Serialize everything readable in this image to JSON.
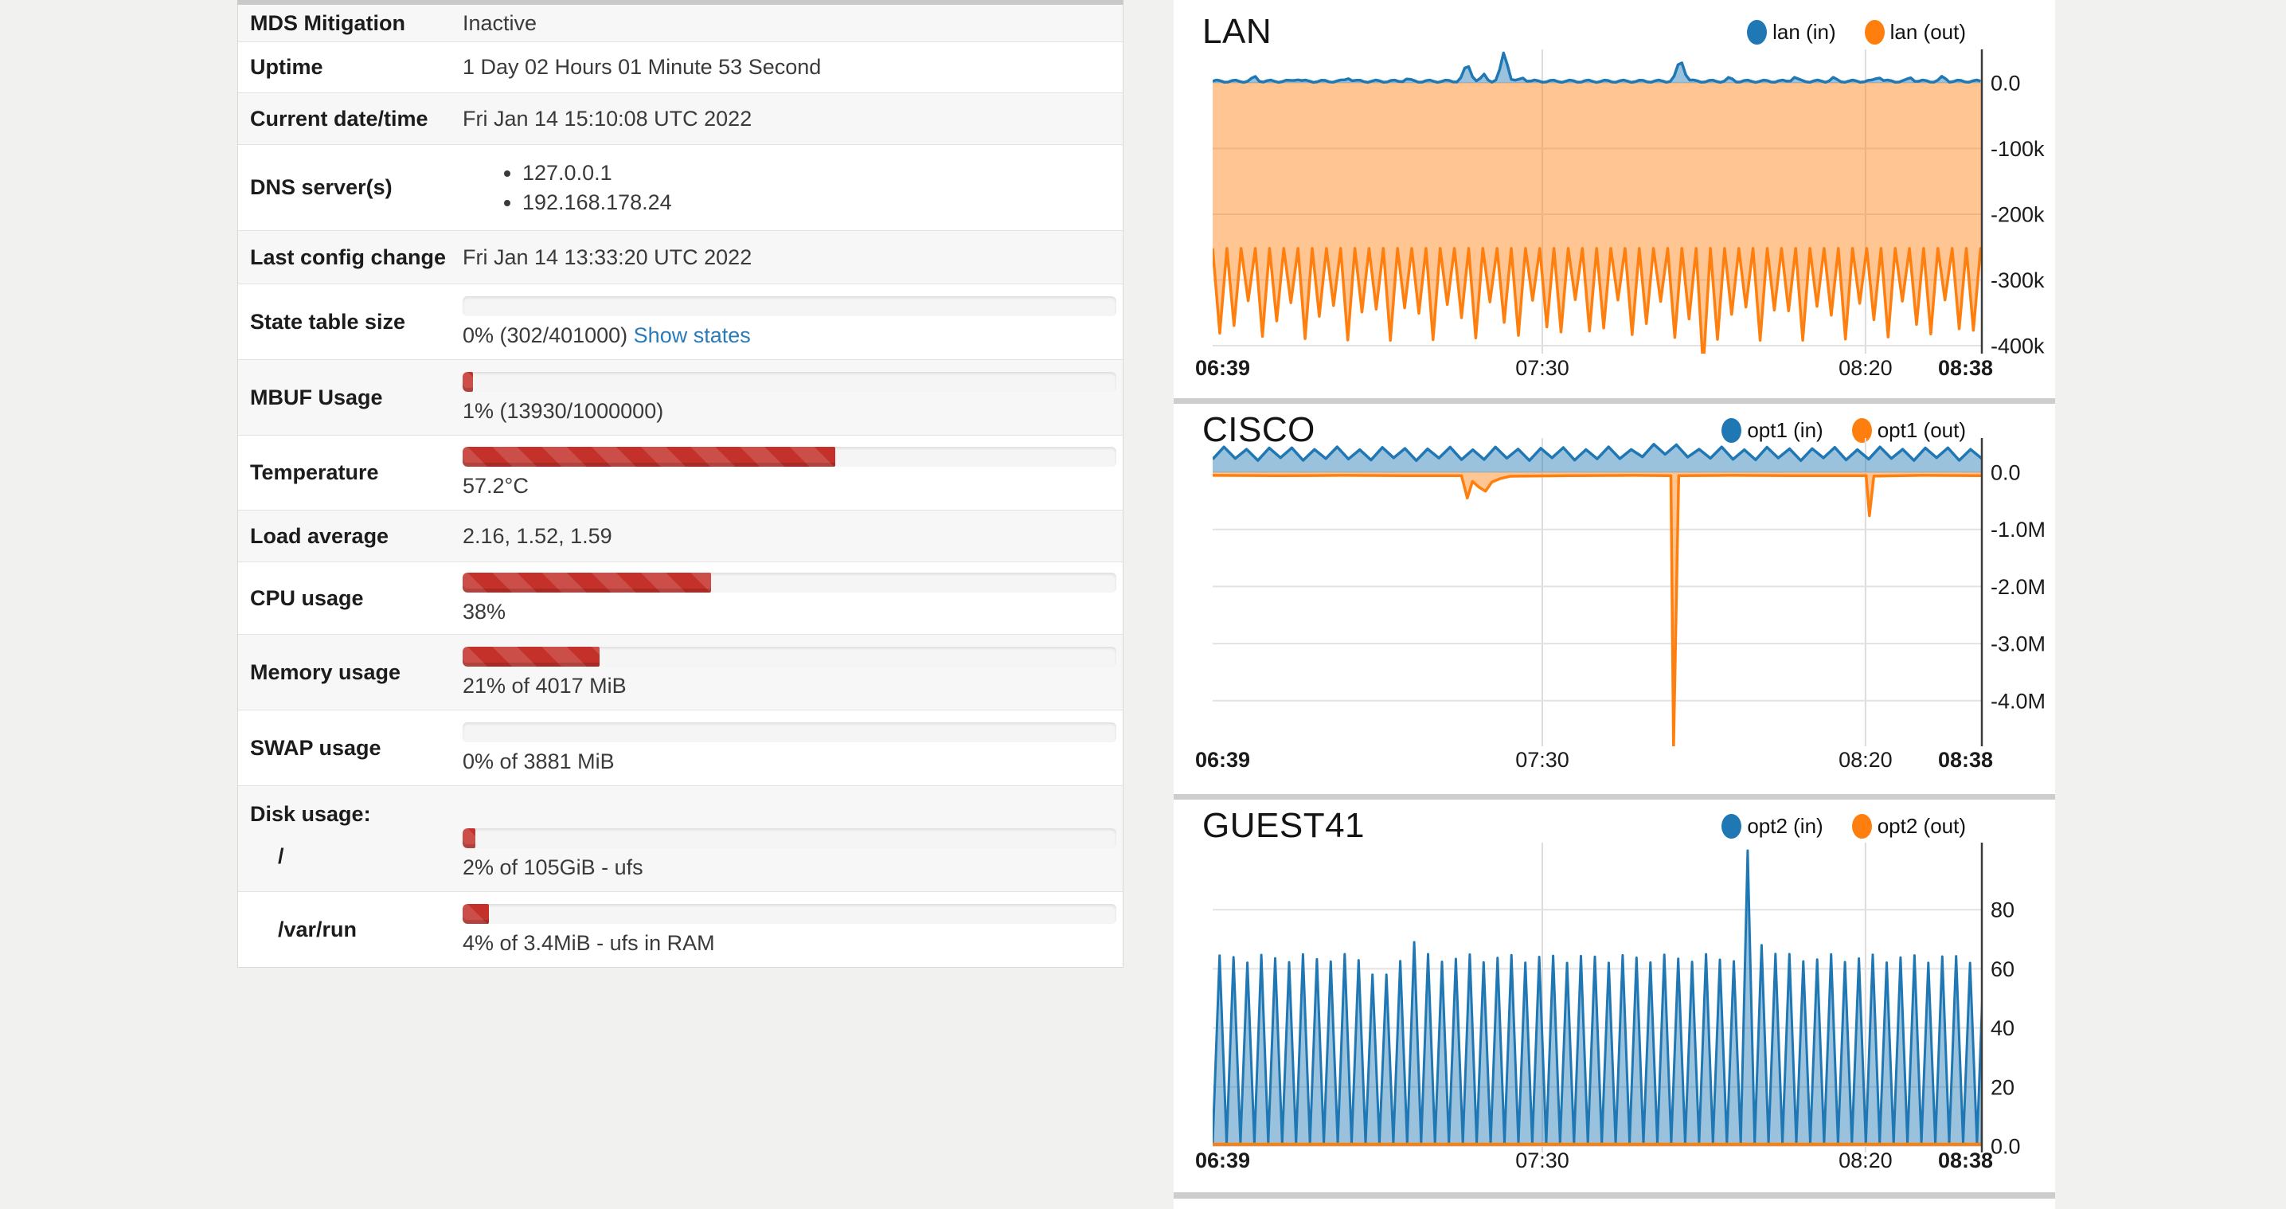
{
  "page": {
    "background": "#f1f1f0",
    "panel_background": "#ffffff",
    "divider_color": "#cdcdcd",
    "accent_red": "#c4312b",
    "link_blue": "#2b7bb9"
  },
  "sysinfo": {
    "rows": [
      {
        "label": "MDS Mitigation",
        "type": "text",
        "value": "Inactive",
        "h": 47
      },
      {
        "label": "Uptime",
        "type": "text",
        "value": "1 Day 02 Hours 01 Minute 53 Second",
        "h": 64
      },
      {
        "label": "Current date/time",
        "type": "text",
        "value": "Fri Jan 14 15:10:08 UTC 2022",
        "h": 65
      },
      {
        "label": "DNS server(s)",
        "type": "list",
        "items": [
          "127.0.0.1",
          "192.168.178.24"
        ],
        "h": 108
      },
      {
        "label": "Last config change",
        "type": "text",
        "value": "Fri Jan 14 13:33:20 UTC 2022",
        "h": 67
      },
      {
        "label": "State table size",
        "type": "bar",
        "percent": 0,
        "text": "0% (302/401000)",
        "link": "Show states",
        "h": 95
      },
      {
        "label": "MBUF Usage",
        "type": "bar",
        "percent": 1,
        "text": "1% (13930/1000000)",
        "h": 95
      },
      {
        "label": "Temperature",
        "type": "bar",
        "percent": 57,
        "text": "57.2°C",
        "h": 94
      },
      {
        "label": "Load average",
        "type": "text",
        "value": "2.16, 1.52, 1.59",
        "h": 65
      },
      {
        "label": "CPU usage",
        "type": "bar",
        "percent": 38,
        "text": "38%",
        "h": 91
      },
      {
        "label": "Memory usage",
        "type": "bar",
        "percent": 21,
        "text": "21% of 4017 MiB",
        "h": 95
      },
      {
        "label": "SWAP usage",
        "type": "bar",
        "percent": 0,
        "text": "0% of 3881 MiB",
        "h": 95
      },
      {
        "label": "Disk usage:",
        "type": "disk",
        "sub_label": "/",
        "percent": 2,
        "text": "2% of 105GiB - ufs",
        "h": 133
      },
      {
        "label": "/var/run",
        "type": "bar",
        "indent": true,
        "percent": 4,
        "text": "4% of 3.4MiB - ufs in RAM",
        "h": 94
      }
    ]
  },
  "charts": [
    {
      "title": "LAN",
      "type": "area",
      "legend": [
        {
          "label": "lan (in)",
          "color": "#1f77b4"
        },
        {
          "label": "lan (out)",
          "color": "#ff7f0e"
        }
      ],
      "x_range_minutes": 119,
      "x_ticks": [
        {
          "t": 0,
          "label": "06:39",
          "bold": true,
          "anchor": "start"
        },
        {
          "t": 51,
          "label": "07:30",
          "grid": true,
          "anchor": "middle"
        },
        {
          "t": 101,
          "label": "08:20",
          "grid": true,
          "anchor": "middle"
        },
        {
          "t": 119,
          "label": "08:38",
          "bold": true,
          "anchor": "end"
        }
      ],
      "y_ticks": [
        {
          "v": 0,
          "label": "0.0"
        },
        {
          "v": -100000,
          "label": "-100k"
        },
        {
          "v": -200000,
          "label": "-200k"
        },
        {
          "v": -300000,
          "label": "-300k"
        },
        {
          "v": -400000,
          "label": "-400k"
        }
      ],
      "series": [
        {
          "name": "lan (out)",
          "color": "#ff7f0e",
          "fill": "rgba(255,127,14,0.45)",
          "width": 3.5,
          "gen": {
            "kind": "sawtooth",
            "span": 119,
            "period": 2.2,
            "base": -252000,
            "tip_a": -330000,
            "tip_b": -392000,
            "anomalies": [
              {
                "t": 75.5,
                "y": -434000
              }
            ]
          }
        },
        {
          "name": "lan (in)",
          "color": "#1f77b4",
          "fill": "rgba(31,119,180,0.45)",
          "width": 3.5,
          "gen": {
            "kind": "bumpline",
            "span": 119,
            "base": 2500,
            "ripple": 1800,
            "bumps": [
              {
                "t": 6.5,
                "y": 9000
              },
              {
                "t": 13,
                "y": 6500
              },
              {
                "t": 21,
                "y": 8000
              },
              {
                "t": 30,
                "y": 6000
              },
              {
                "t": 39.4,
                "y": 26000,
                "w": 0.8
              },
              {
                "t": 42,
                "y": 12000
              },
              {
                "t": 45.1,
                "y": 46000,
                "w": 0.7
              },
              {
                "t": 48,
                "y": 8000
              },
              {
                "t": 72.4,
                "y": 33000,
                "w": 0.8
              },
              {
                "t": 80,
                "y": 7000
              },
              {
                "t": 90,
                "y": 9000
              },
              {
                "t": 96,
                "y": 7000
              },
              {
                "t": 103,
                "y": 10000
              },
              {
                "t": 108,
                "y": 8000
              },
              {
                "t": 113,
                "y": 9000
              }
            ]
          }
        }
      ]
    },
    {
      "title": "CISCO",
      "type": "area",
      "legend": [
        {
          "label": "opt1 (in)",
          "color": "#1f77b4"
        },
        {
          "label": "opt1 (out)",
          "color": "#ff7f0e"
        }
      ],
      "x_range_minutes": 119,
      "x_ticks": [
        {
          "t": 0,
          "label": "06:39",
          "bold": true,
          "anchor": "start"
        },
        {
          "t": 51,
          "label": "07:30",
          "grid": true,
          "anchor": "middle"
        },
        {
          "t": 101,
          "label": "08:20",
          "grid": true,
          "anchor": "middle"
        },
        {
          "t": 119,
          "label": "08:38",
          "bold": true,
          "anchor": "end"
        }
      ],
      "y_ticks": [
        {
          "v": 0,
          "label": "0.0"
        },
        {
          "v": -1000000,
          "label": "-1.0M"
        },
        {
          "v": -2000000,
          "label": "-2.0M"
        },
        {
          "v": -3000000,
          "label": "-3.0M"
        },
        {
          "v": -4000000,
          "label": "-4.0M"
        }
      ],
      "series": [
        {
          "name": "opt1 (in)",
          "color": "#1f77b4",
          "fill": "rgba(31,119,180,0.45)",
          "width": 3.5,
          "gen": {
            "kind": "zigzag",
            "span": 119,
            "period": 1.75,
            "lo": 230000,
            "hi": 420000,
            "variation": 25000,
            "windows": [
              {
                "t0": 66,
                "t1": 74,
                "dv": 60000
              }
            ]
          }
        },
        {
          "name": "opt1 (out)",
          "color": "#ff7f0e",
          "fill": "rgba(255,127,14,0.45)",
          "width": 3.5,
          "points": [
            [
              0,
              -55000
            ],
            [
              10,
              -60000
            ],
            [
              20,
              -55000
            ],
            [
              30,
              -60000
            ],
            [
              38.5,
              -60000
            ],
            [
              39.4,
              -450000
            ],
            [
              40.2,
              -160000
            ],
            [
              41.2,
              -260000
            ],
            [
              42.2,
              -330000
            ],
            [
              43.2,
              -170000
            ],
            [
              44.5,
              -110000
            ],
            [
              46,
              -70000
            ],
            [
              55,
              -60000
            ],
            [
              65,
              -55000
            ],
            [
              70.9,
              -60000
            ],
            [
              71.3,
              -4850000
            ],
            [
              72.1,
              -60000
            ],
            [
              80,
              -55000
            ],
            [
              90,
              -60000
            ],
            [
              101.1,
              -60000
            ],
            [
              101.6,
              -760000
            ],
            [
              102.3,
              -65000
            ],
            [
              110,
              -55000
            ],
            [
              119,
              -60000
            ]
          ]
        }
      ]
    },
    {
      "title": "GUEST41",
      "type": "area",
      "legend": [
        {
          "label": "opt2 (in)",
          "color": "#1f77b4"
        },
        {
          "label": "opt2 (out)",
          "color": "#ff7f0e"
        }
      ],
      "x_range_minutes": 119,
      "x_ticks": [
        {
          "t": 0,
          "label": "06:39",
          "bold": true,
          "anchor": "start"
        },
        {
          "t": 51,
          "label": "07:30",
          "grid": true,
          "anchor": "middle"
        },
        {
          "t": 101,
          "label": "08:20",
          "grid": true,
          "anchor": "middle"
        },
        {
          "t": 119,
          "label": "08:38",
          "bold": true,
          "anchor": "end"
        }
      ],
      "y_ticks": [
        {
          "v": 80,
          "label": "80"
        },
        {
          "v": 60,
          "label": "60"
        },
        {
          "v": 40,
          "label": "40"
        },
        {
          "v": 20,
          "label": "20"
        },
        {
          "v": 0,
          "label": "0.0"
        }
      ],
      "series": [
        {
          "name": "opt2 (in)",
          "color": "#1f77b4",
          "fill": "rgba(31,119,180,0.45)",
          "width": 3,
          "gen": {
            "kind": "sawtooth",
            "span": 119,
            "period": 2.15,
            "base": 1,
            "tip_a": 62,
            "tip_b": 65,
            "anomalies": [
              {
                "t": 25.8,
                "y": 58
              },
              {
                "t": 30.7,
                "y": 69
              },
              {
                "t": 83,
                "y": 100
              },
              {
                "t": 85.5,
                "y": 68
              },
              {
                "t": 88,
                "y": 65
              }
            ]
          }
        },
        {
          "name": "opt2 (out)",
          "color": "#ff7f0e",
          "fill": "none",
          "width": 4,
          "points": [
            [
              0,
              0.6
            ],
            [
              119,
              0.6
            ]
          ]
        }
      ]
    }
  ]
}
